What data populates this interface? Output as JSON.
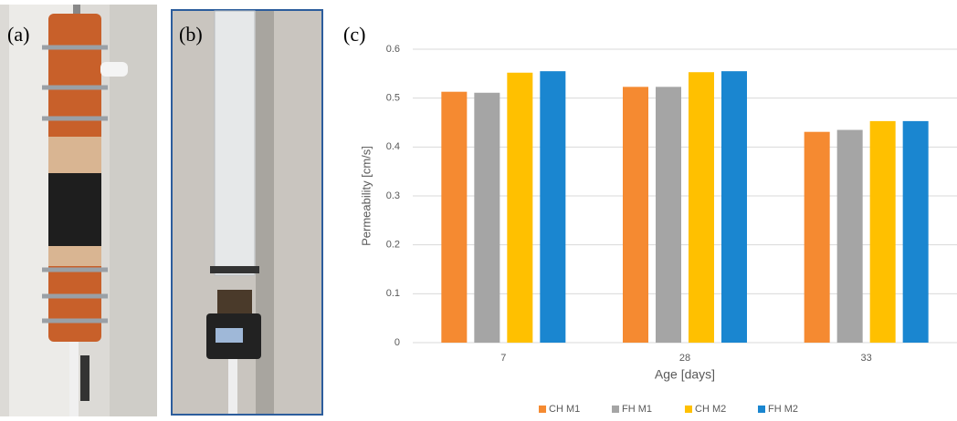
{
  "panel_labels": [
    "(a)",
    "(b)",
    "(c)"
  ],
  "chart_data": {
    "type": "bar",
    "y_label": "Permeability [cm/s]",
    "x_label": "Age [days]",
    "categories": [
      "7",
      "28",
      "33"
    ],
    "series": [
      {
        "name": "CH M1",
        "color": "#f58a31",
        "values": [
          0.513,
          0.523,
          0.431
        ]
      },
      {
        "name": "FH M1",
        "color": "#a5a5a5",
        "values": [
          0.511,
          0.523,
          0.435
        ]
      },
      {
        "name": "CH M2",
        "color": "#ffc000",
        "values": [
          0.552,
          0.553,
          0.453
        ]
      },
      {
        "name": "FH M2",
        "color": "#1a86d0",
        "values": [
          0.555,
          0.555,
          0.453
        ]
      }
    ],
    "ylim": [
      0,
      0.6
    ],
    "yticks": [
      0,
      0.1,
      0.2,
      0.3,
      0.4,
      0.5,
      0.6
    ],
    "grid": true,
    "legend": "bottom"
  }
}
